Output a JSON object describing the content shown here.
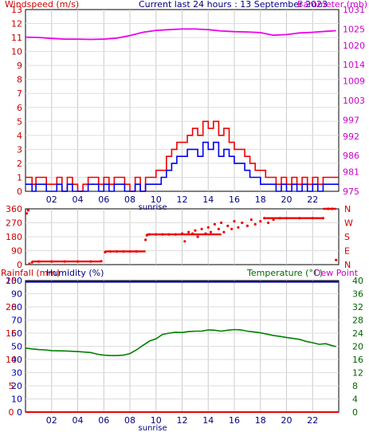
{
  "header": {
    "left_label": "Windspeed (m/s)",
    "center_label": "Current last 24 hours : 13 September 2023",
    "right_label": "Barometer (mb)"
  },
  "colors": {
    "wind_avg": "#0000ee",
    "wind_gust": "#ee0000",
    "barometer": "#ee00ee",
    "direction": "#ee0000",
    "humidity": "#008000",
    "rainfall": "#ee0000",
    "temperature": "#008000",
    "dewpoint": "#0000aa",
    "axis_red": "#cc0000",
    "axis_magenta": "#cc00cc",
    "axis_green": "#006600"
  },
  "chart_data": [
    {
      "type": "line",
      "id": "wind",
      "x_labels": [
        "02",
        "04",
        "06",
        "08",
        "10",
        "12",
        "14",
        "16",
        "18",
        "20",
        "22"
      ],
      "x_hours": [
        2,
        4,
        6,
        8,
        10,
        12,
        14,
        16,
        18,
        20,
        22
      ],
      "xlim": [
        0,
        24
      ],
      "sunrise_label": "sunrise",
      "sunrise_hour": 9.5,
      "y_left_ticks": [
        "0",
        "1",
        "2",
        "3",
        "4",
        "5",
        "6",
        "7",
        "8",
        "9",
        "10",
        "11",
        "12",
        "13"
      ],
      "y_left_lim": [
        0,
        13
      ],
      "y_right_ticks": [
        "975",
        "981",
        "986",
        "992",
        "997",
        "1003",
        "1009",
        "1014",
        "1020",
        "1025",
        "1031"
      ],
      "y_right_lim": [
        975,
        1031
      ],
      "series": [
        {
          "key": "gust",
          "x": [
            0,
            0.3,
            0.5,
            0.8,
            1.2,
            1.6,
            2.0,
            2.4,
            2.8,
            3.2,
            3.6,
            4.0,
            4.4,
            4.8,
            5.2,
            5.6,
            6.0,
            6.4,
            6.8,
            7.2,
            7.6,
            8.0,
            8.4,
            8.8,
            9.2,
            9.6,
            10.0,
            10.4,
            10.8,
            11.2,
            11.6,
            12.0,
            12.4,
            12.8,
            13.2,
            13.6,
            14.0,
            14.4,
            14.8,
            15.2,
            15.6,
            16.0,
            16.4,
            16.8,
            17.2,
            17.6,
            18.0,
            18.4,
            18.8,
            19.2,
            19.6,
            20.0,
            20.4,
            20.8,
            21.2,
            21.6,
            22.0,
            22.4,
            22.8,
            23.2,
            23.6
          ],
          "y": [
            1,
            1,
            0.5,
            1,
            1,
            0.5,
            0.5,
            1,
            0,
            1,
            0.5,
            0,
            0.5,
            1,
            1,
            0.5,
            1,
            0.5,
            1,
            1,
            0.5,
            0,
            1,
            0,
            1,
            1,
            1.5,
            1.5,
            2.5,
            3,
            3.5,
            3.5,
            4,
            4.5,
            4,
            5,
            4.5,
            5,
            4,
            4.5,
            3.5,
            3,
            3,
            2.5,
            2,
            1.5,
            1.5,
            1,
            1,
            0.5,
            1,
            0.5,
            1,
            0.5,
            1,
            0.5,
            1,
            0.5,
            1,
            1,
            1
          ]
        },
        {
          "key": "avg",
          "x": [
            0,
            0.3,
            0.5,
            0.8,
            1.2,
            1.6,
            2.0,
            2.4,
            2.8,
            3.2,
            3.6,
            4.0,
            4.4,
            4.8,
            5.2,
            5.6,
            6.0,
            6.4,
            6.8,
            7.2,
            7.6,
            8.0,
            8.4,
            8.8,
            9.2,
            9.6,
            10.0,
            10.4,
            10.8,
            11.2,
            11.6,
            12.0,
            12.4,
            12.8,
            13.2,
            13.6,
            14.0,
            14.4,
            14.8,
            15.2,
            15.6,
            16.0,
            16.4,
            16.8,
            17.2,
            17.6,
            18.0,
            18.4,
            18.8,
            19.2,
            19.6,
            20.0,
            20.4,
            20.8,
            21.2,
            21.6,
            22.0,
            22.4,
            22.8,
            23.2,
            23.6
          ],
          "y": [
            0.5,
            0.5,
            0,
            0.5,
            0.5,
            0,
            0,
            0.5,
            0,
            0.5,
            0,
            0,
            0,
            0.5,
            0.5,
            0,
            0.5,
            0,
            0.5,
            0.5,
            0,
            0,
            0.5,
            0,
            0.5,
            0.5,
            0.5,
            1,
            1.5,
            2,
            2.5,
            2.5,
            3,
            3,
            2.5,
            3.5,
            3,
            3.5,
            2.5,
            3,
            2.5,
            2,
            2,
            1.5,
            1,
            1,
            0.5,
            0.5,
            0.5,
            0,
            0.5,
            0,
            0.5,
            0,
            0.5,
            0,
            0.5,
            0,
            0.5,
            0.5,
            0.5
          ]
        },
        {
          "key": "baro",
          "axis": "right",
          "x": [
            0,
            1,
            2,
            3,
            4,
            5,
            6,
            7,
            8,
            9,
            10,
            11,
            12,
            13,
            14,
            15,
            16,
            17,
            18,
            19,
            20,
            21,
            22,
            23,
            23.8
          ],
          "y": [
            1022.5,
            1022.4,
            1022.1,
            1021.9,
            1021.9,
            1021.8,
            1021.9,
            1022.2,
            1023.0,
            1024.0,
            1024.6,
            1024.8,
            1025.0,
            1025.0,
            1024.8,
            1024.4,
            1024.2,
            1024.1,
            1023.9,
            1023.1,
            1023.3,
            1023.8,
            1024.0,
            1024.3,
            1024.5
          ]
        }
      ]
    },
    {
      "type": "scatter",
      "id": "direction",
      "y_left_ticks": [
        "0",
        "90",
        "180",
        "270",
        "360"
      ],
      "y_lim": [
        0,
        360
      ],
      "y_right_ticks": [
        "N",
        "E",
        "S",
        "W",
        "N"
      ],
      "series": [
        {
          "key": "dir",
          "x": [
            0.1,
            0.2,
            0.3,
            0.5,
            1,
            2,
            3,
            4,
            5,
            5.8,
            6.1,
            6.5,
            7,
            7.5,
            8,
            8.5,
            9.2,
            9.3,
            9.5,
            10,
            10.5,
            11,
            11.5,
            12,
            12.2,
            12.5,
            12.8,
            13,
            13.2,
            13.5,
            13.8,
            14,
            14.2,
            14.5,
            14.8,
            15,
            15.2,
            15.5,
            15.8,
            16,
            16.3,
            16.6,
            17,
            17.3,
            17.6,
            18,
            18.3,
            18.6,
            19,
            19.5,
            20,
            21,
            22,
            22.8,
            23.2,
            23.5,
            23.8
          ],
          "y": [
            330,
            350,
            5,
            15,
            20,
            20,
            20,
            20,
            20,
            22,
            80,
            85,
            85,
            85,
            85,
            85,
            160,
            190,
            195,
            195,
            195,
            195,
            195,
            200,
            150,
            210,
            200,
            220,
            180,
            230,
            200,
            240,
            210,
            260,
            230,
            270,
            210,
            250,
            230,
            280,
            240,
            270,
            250,
            290,
            260,
            280,
            300,
            270,
            290,
            300,
            300,
            300,
            300,
            300,
            360,
            360,
            30
          ]
        }
      ]
    },
    {
      "type": "line",
      "id": "rain-hum-temp",
      "left_title": "Rainfall (mm)",
      "humidity_title": "Humidity (%)",
      "temperature_title": "Temperature (°C)",
      "dewpoint_title": "Dew Point",
      "y_rain_ticks": [
        "0",
        "5",
        "10",
        "15",
        "20",
        "25"
      ],
      "y_rain_lim": [
        0,
        25
      ],
      "y_hum_ticks": [
        "0",
        "10",
        "20",
        "30",
        "40",
        "50",
        "60",
        "70",
        "80",
        "90",
        "100"
      ],
      "y_hum_lim": [
        0,
        100
      ],
      "y_temp_ticks": [
        "0",
        "4",
        "8",
        "12",
        "16",
        "20",
        "24",
        "28",
        "32",
        "36",
        "40"
      ],
      "y_temp_lim": [
        0,
        40
      ],
      "series": [
        {
          "key": "humidity_line",
          "axis": "humidity",
          "x": [
            0,
            24
          ],
          "y": [
            99,
            99
          ]
        },
        {
          "key": "temperature",
          "axis": "temperature",
          "x": [
            0,
            0.5,
            1,
            1.5,
            2,
            3,
            4,
            5,
            5.5,
            6,
            6.5,
            7,
            7.5,
            8,
            8.5,
            9,
            9.5,
            10,
            10.5,
            11,
            11.5,
            12,
            12.5,
            13,
            13.5,
            14,
            14.5,
            15,
            15.5,
            16,
            16.5,
            17,
            17.5,
            18,
            18.5,
            19,
            19.5,
            20,
            20.5,
            21,
            21.5,
            22,
            22.5,
            23,
            23.5,
            23.8
          ],
          "y": [
            19.5,
            19.2,
            19.0,
            18.9,
            18.7,
            18.6,
            18.4,
            18.1,
            17.6,
            17.3,
            17.2,
            17.2,
            17.3,
            17.8,
            18.9,
            20.3,
            21.6,
            22.3,
            23.6,
            24.0,
            24.3,
            24.2,
            24.5,
            24.6,
            24.6,
            25.0,
            24.9,
            24.6,
            24.9,
            25.1,
            25.0,
            24.6,
            24.4,
            24.1,
            23.7,
            23.3,
            23.0,
            22.7,
            22.4,
            22.1,
            21.5,
            21.1,
            20.6,
            20.8,
            20.2,
            19.9
          ]
        },
        {
          "key": "rain",
          "axis": "rain",
          "x": [
            0,
            24
          ],
          "y": [
            0,
            0
          ]
        }
      ]
    }
  ]
}
